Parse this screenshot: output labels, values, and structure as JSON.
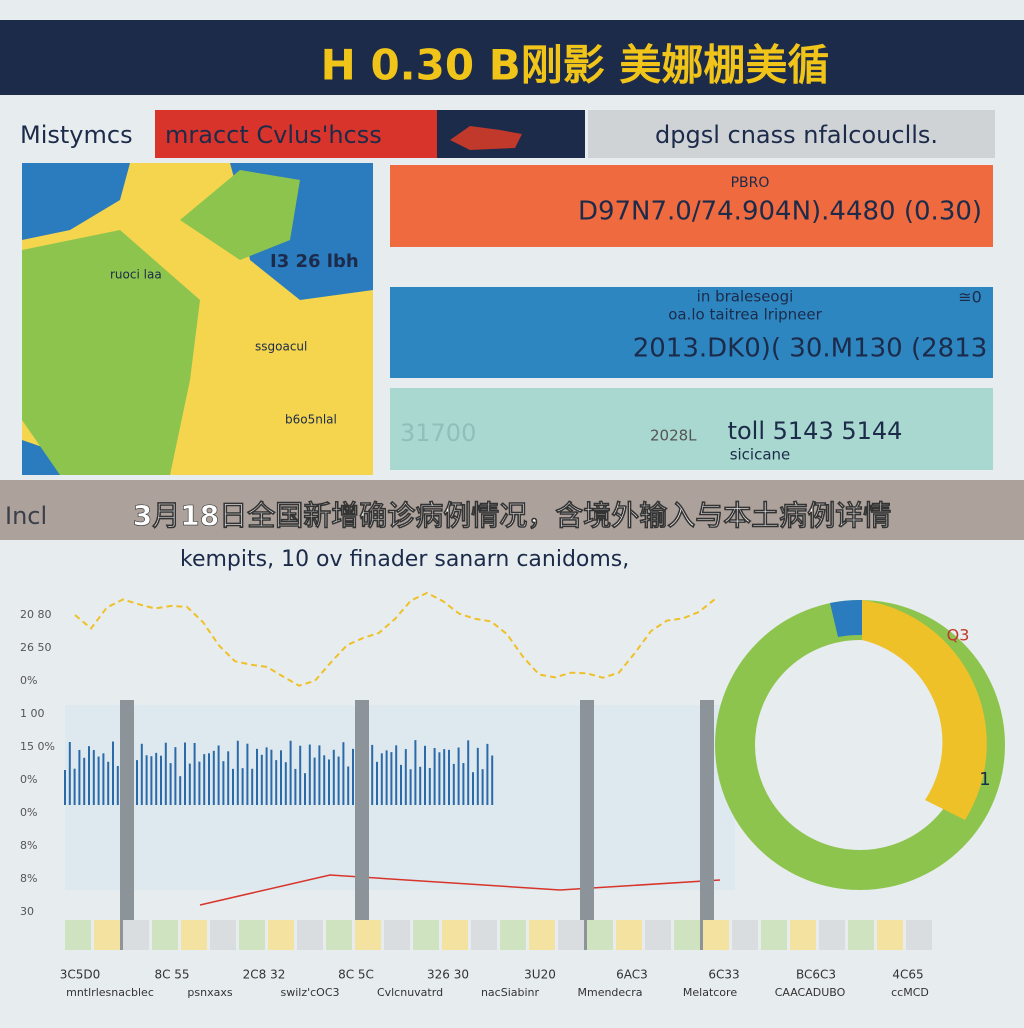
{
  "header": {
    "title": "H 0.30 B刚影 美娜棚美循"
  },
  "tabs": [
    "Mistymcs",
    "mracct Cvlus'hcss",
    "dpgsl cnass nfalcouclls."
  ],
  "map": {
    "labels": [
      "I3 26 lbh",
      "ruoci laa",
      "ssgoacul",
      "b6o5nlal"
    ]
  },
  "panels": [
    {
      "lines": [
        "PBRO",
        "D97N7.0/74.904N).4480 (0.30)"
      ]
    },
    {
      "lines": [
        "in braleseogi",
        "oa.lo taitrea lripneer",
        "2013.DK0)( 30.M130 (2813",
        "≅0"
      ]
    },
    {
      "lines": [
        "31700",
        "2028L",
        "toll 5143 5144",
        "sicicane"
      ]
    }
  ],
  "caption": "3月18日全国新增确诊病例情况，含境外输入与本土病例详情",
  "caption_prefix": "Incl",
  "chart": {
    "title": "kempits, 10 ov finader sanarn canidoms,",
    "axis_labels": [
      "20 80",
      "26 50",
      "0%",
      "1 00",
      "15 0%",
      "0%",
      "0%",
      "8%",
      "8%",
      "30"
    ],
    "bottom_labels": [
      "3C5D0",
      "8C 55",
      "2C8 32",
      "8C 5C",
      "326 30",
      "3U20",
      "6AC3",
      "6C33",
      "BC6C3",
      "4C65"
    ],
    "bottom_sub": [
      "mntlrlesnacblec",
      "psnxaxs",
      "swilz'cOC3",
      "Cvlcnuvatrd",
      "nacSiabinr",
      "Mmendecra",
      "Melatcore",
      "CAACADUBO",
      "ccMCD"
    ],
    "donut_labels": [
      "Q3",
      "1"
    ]
  }
}
